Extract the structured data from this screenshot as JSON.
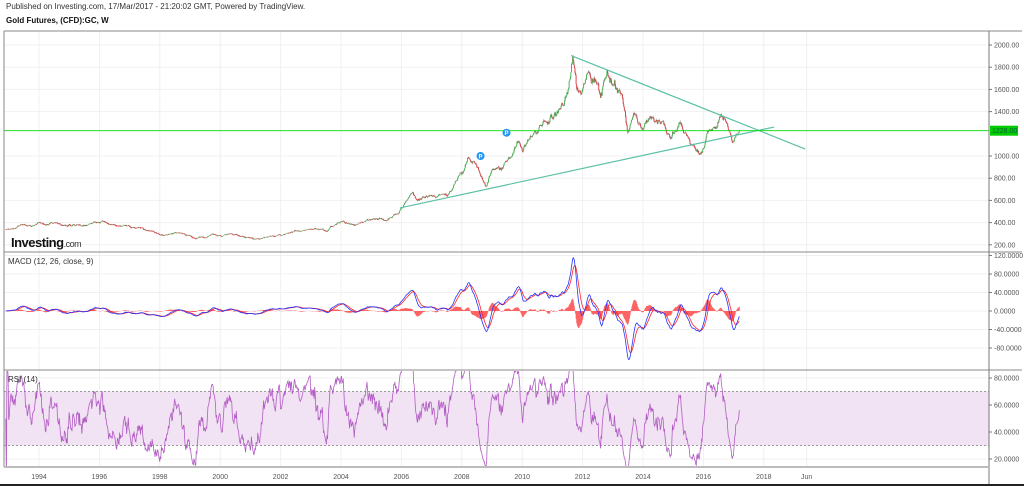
{
  "header": {
    "published": "Published on Investing.com, 17/Mar/2017 - 21:20:02 GMT, Powered by TradingView.",
    "title": "Gold Futures, (CFD):GC, W"
  },
  "logo": {
    "main": "Investing",
    "suffix": ".com"
  },
  "colors": {
    "up": "#3fb24a",
    "down": "#e0393e",
    "wick": "#555555",
    "trend": "#5cc0a6",
    "price_line": "#00dd00",
    "macd": "#2233ff",
    "signal": "#ff2222",
    "hist": "#ff5555",
    "rsi": "#b25cc4",
    "rsi_band": "#f1e3f3",
    "marker": "#2196f3"
  },
  "chart_data": [
    {
      "type": "candlestick",
      "title": "Gold Futures, (CFD):GC, W",
      "interval": "weekly",
      "ylim": [
        150,
        2100
      ],
      "yticks": [
        2000,
        1800,
        1600,
        1400,
        1000,
        800,
        600,
        400,
        200
      ],
      "ytick_labels": [
        "2000.00",
        "1800.00",
        "1600.00",
        "1400.00",
        "1000.00",
        "800.00",
        "600.00",
        "400.00",
        "200.00"
      ],
      "last_price": 1228,
      "last_price_label": "1228.00",
      "xlim": [
        1992.87,
        2019.45
      ],
      "xticks": [
        1994,
        1996,
        1998,
        2000,
        2002,
        2004,
        2006,
        2008,
        2010,
        2012,
        2014,
        2016,
        2018,
        2019.42
      ],
      "xtick_labels": [
        "1994",
        "1996",
        "1998",
        "2000",
        "2002",
        "2004",
        "2006",
        "2008",
        "2010",
        "2012",
        "2014",
        "2016",
        "2018",
        "Jun"
      ],
      "approx_closes": {
        "t": [
          1992.9,
          1993.25,
          1993.5,
          1993.6,
          1993.75,
          1994.0,
          1994.25,
          1994.5,
          1994.75,
          1995.0,
          1995.5,
          1996.0,
          1996.1,
          1996.5,
          1997.0,
          1997.5,
          1998.0,
          1998.5,
          1999.0,
          1999.5,
          1999.75,
          2000.0,
          2000.5,
          2001.0,
          2001.3,
          2001.75,
          2002.0,
          2002.5,
          2003.0,
          2003.5,
          2004.0,
          2004.5,
          2005.0,
          2005.5,
          2005.9,
          2006.35,
          2006.5,
          2007.0,
          2007.5,
          2008.0,
          2008.2,
          2008.5,
          2008.8,
          2009.0,
          2009.5,
          2009.9,
          2010.0,
          2010.5,
          2010.9,
          2011.25,
          2011.5,
          2011.67,
          2011.8,
          2012.0,
          2012.2,
          2012.6,
          2012.8,
          2013.0,
          2013.3,
          2013.5,
          2013.7,
          2014.0,
          2014.2,
          2014.5,
          2014.9,
          2015.1,
          2015.5,
          2015.95,
          2016.2,
          2016.55,
          2016.75,
          2016.95,
          2017.2
        ],
        "close": [
          335,
          355,
          385,
          370,
          360,
          390,
          385,
          395,
          383,
          385,
          387,
          400,
          410,
          382,
          360,
          335,
          295,
          296,
          285,
          262,
          300,
          285,
          288,
          272,
          258,
          288,
          290,
          318,
          345,
          350,
          415,
          395,
          430,
          430,
          480,
          700,
          620,
          640,
          660,
          850,
          980,
          920,
          720,
          870,
          930,
          1150,
          1100,
          1240,
          1380,
          1440,
          1520,
          1900,
          1620,
          1580,
          1750,
          1600,
          1780,
          1680,
          1560,
          1220,
          1380,
          1210,
          1350,
          1320,
          1180,
          1280,
          1170,
          1050,
          1250,
          1360,
          1320,
          1130,
          1230
        ]
      },
      "trendlines": [
        {
          "name": "upper-trendline",
          "from": [
            2011.62,
            1905
          ],
          "to": [
            2019.37,
            1063
          ]
        },
        {
          "name": "lower-trendline",
          "from": [
            2005.95,
            532
          ],
          "to": [
            2018.34,
            1261
          ]
        }
      ],
      "markers": [
        {
          "label": "P",
          "t": 2008.62,
          "price": 1000
        },
        {
          "label": "P",
          "t": 2009.48,
          "price": 1210
        }
      ]
    },
    {
      "type": "line",
      "title": "MACD (12, 26, close, 9)",
      "params": {
        "fast": 12,
        "slow": 26,
        "source": "close",
        "signal": 9
      },
      "series": [
        "MACD",
        "Signal",
        "Histogram"
      ],
      "ylim": [
        -100,
        130
      ],
      "yticks": [
        120,
        80,
        40,
        0,
        -40,
        -80
      ],
      "ytick_labels": [
        "120.0000",
        "80.0000",
        "40.0000",
        "0.0000",
        "-40.0000",
        "-80.0000"
      ]
    },
    {
      "type": "line",
      "title": "RSI (14)",
      "params": {
        "length": 14
      },
      "band": [
        30,
        70
      ],
      "ylim": [
        14,
        87
      ],
      "yticks": [
        80,
        60,
        40,
        20
      ],
      "ytick_labels": [
        "80.0000",
        "60.0000",
        "40.0000",
        "20.0000"
      ]
    }
  ]
}
